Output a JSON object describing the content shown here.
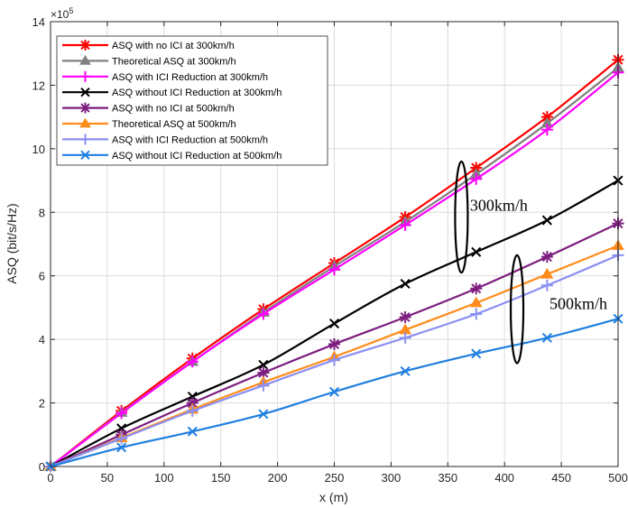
{
  "chart_data": {
    "type": "line",
    "xlabel": "x (m)",
    "ylabel": "ASQ (bit/s/Hz)",
    "y_multiplier": "×10",
    "y_multiplier_exponent": "5",
    "xlim": [
      0,
      500
    ],
    "ylim": [
      0,
      14
    ],
    "xticks": [
      0,
      50,
      100,
      150,
      200,
      250,
      300,
      350,
      400,
      450,
      500
    ],
    "yticks": [
      0,
      2,
      4,
      6,
      8,
      10,
      12,
      14
    ],
    "grid": true,
    "legend_position": "top-left",
    "x": [
      0,
      62.5,
      125,
      187.5,
      250,
      312.5,
      375,
      437.5,
      500
    ],
    "series": [
      {
        "name": "ASQ with no ICI at 300km/h",
        "color": "#ff0000",
        "marker": "asterisk",
        "values": [
          0,
          1.75,
          3.4,
          4.95,
          6.4,
          7.85,
          9.4,
          11.0,
          12.8
        ]
      },
      {
        "name": "Theoretical ASQ at 300km/h",
        "color": "#808080",
        "marker": "triangle",
        "values": [
          0,
          1.7,
          3.3,
          4.85,
          6.3,
          7.7,
          9.2,
          10.8,
          12.55
        ]
      },
      {
        "name": "ASQ with ICI Reduction at 300km/h",
        "color": "#ff00ff",
        "marker": "plus",
        "values": [
          0,
          1.68,
          3.3,
          4.8,
          6.2,
          7.6,
          9.05,
          10.6,
          12.4
        ]
      },
      {
        "name": "ASQ without ICI Reduction at 300km/h",
        "color": "#000000",
        "marker": "x",
        "values": [
          0,
          1.2,
          2.2,
          3.2,
          4.5,
          5.75,
          6.75,
          7.75,
          9.0
        ]
      },
      {
        "name": "ASQ with no ICI at 500km/h",
        "color": "#7e1e80",
        "marker": "asterisk",
        "values": [
          0,
          1.0,
          2.0,
          2.95,
          3.85,
          4.7,
          5.6,
          6.6,
          7.65
        ]
      },
      {
        "name": "Theoretical ASQ at 500km/h",
        "color": "#ff8c1a",
        "marker": "triangle",
        "values": [
          0,
          0.9,
          1.8,
          2.65,
          3.45,
          4.3,
          5.15,
          6.05,
          6.95
        ]
      },
      {
        "name": "ASQ with ICI Reduction at 500km/h",
        "color": "#8a8ff2",
        "marker": "plus",
        "values": [
          0,
          0.88,
          1.75,
          2.55,
          3.35,
          4.05,
          4.8,
          5.7,
          6.65
        ]
      },
      {
        "name": "ASQ without ICI Reduction at 500km/h",
        "color": "#1f7fe0",
        "marker": "x",
        "values": [
          0,
          0.6,
          1.1,
          1.65,
          2.35,
          3.0,
          3.55,
          4.05,
          4.65
        ]
      }
    ],
    "annotations": [
      {
        "text": "300km/h",
        "x": 395,
        "y": 8.05
      },
      {
        "text": "500km/h",
        "x": 465,
        "y": 4.95
      }
    ],
    "ellipses": [
      {
        "cx": 362,
        "cy": 7.85,
        "rx": 7,
        "ry": 1.75
      },
      {
        "cx": 411,
        "cy": 4.95,
        "rx": 7,
        "ry": 1.7
      }
    ]
  }
}
